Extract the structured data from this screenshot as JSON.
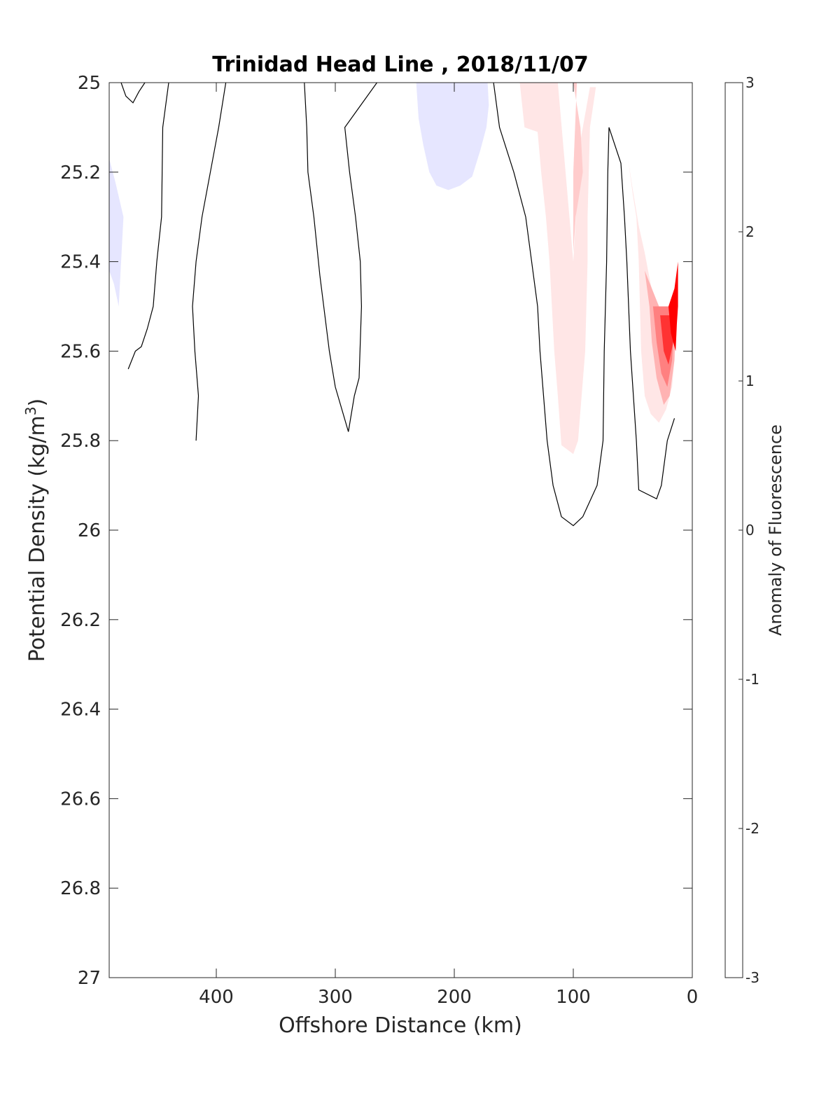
{
  "chart_data": {
    "type": "contour",
    "title": "Trinidad Head Line , 2018/11/07",
    "xlabel": "Offshore Distance (km)",
    "ylabel_main": "Potential Density (kg/m",
    "ylabel_sup": "3",
    "ylabel_close": ")",
    "colorbar_label": "Anomaly of Fluorescence",
    "xlim": [
      490,
      0
    ],
    "ylim": [
      25,
      27
    ],
    "x_reversed": true,
    "y_reversed": true,
    "x_ticks": [
      400,
      300,
      200,
      100,
      0
    ],
    "x_tick_labels": [
      "400",
      "300",
      "200",
      "100",
      "0"
    ],
    "y_ticks": [
      25,
      25.2,
      25.4,
      25.6,
      25.8,
      26,
      26.2,
      26.4,
      26.6,
      26.8,
      27
    ],
    "y_tick_labels": [
      "25",
      "25.2",
      "25.4",
      "25.6",
      "25.8",
      "26",
      "26.2",
      "26.4",
      "26.6",
      "26.8",
      "27"
    ],
    "colorbar": {
      "min": -3,
      "max": 3,
      "levels": 24,
      "ticks": [
        -3,
        -2,
        -1,
        0,
        1,
        2,
        3
      ],
      "tick_labels": [
        "-3",
        "-2",
        "-1",
        "0",
        "1",
        "2",
        "3"
      ],
      "min_color": "#0000ff",
      "zero_color": "#ffffff",
      "max_color": "#ff0000"
    },
    "filled_regions": [
      {
        "level": -0.25,
        "color": "#e6e6ff",
        "points": [
          [
            490,
            25.17
          ],
          [
            485,
            25.22
          ],
          [
            478,
            25.3
          ],
          [
            480,
            25.4
          ],
          [
            482,
            25.5
          ],
          [
            486,
            25.45
          ],
          [
            490,
            25.42
          ]
        ]
      },
      {
        "level": -0.25,
        "color": "#e6e6ff",
        "points": [
          [
            232,
            25
          ],
          [
            230,
            25.08
          ],
          [
            226,
            25.14
          ],
          [
            221,
            25.2
          ],
          [
            215,
            25.23
          ],
          [
            205,
            25.24
          ],
          [
            195,
            25.23
          ],
          [
            185,
            25.21
          ],
          [
            178,
            25.15
          ],
          [
            173,
            25.1
          ],
          [
            171,
            25.05
          ],
          [
            172,
            25
          ]
        ]
      },
      {
        "level": 0.25,
        "color": "#ffe6e6",
        "points": [
          [
            145,
            25
          ],
          [
            141,
            25.1
          ],
          [
            130,
            25.11
          ],
          [
            127,
            25.2
          ],
          [
            123,
            25.3
          ],
          [
            120,
            25.4
          ],
          [
            118,
            25.5
          ],
          [
            116,
            25.6
          ],
          [
            113,
            25.7
          ],
          [
            110,
            25.81
          ],
          [
            100,
            25.83
          ],
          [
            96,
            25.8
          ],
          [
            93,
            25.7
          ],
          [
            90,
            25.6
          ],
          [
            89,
            25.5
          ],
          [
            88,
            25.4
          ],
          [
            88,
            25.3
          ],
          [
            86,
            25.1
          ],
          [
            81,
            25.01
          ],
          [
            86,
            25.01
          ],
          [
            94,
            25.13
          ],
          [
            100,
            25.4
          ],
          [
            113,
            25.0
          ]
        ]
      },
      {
        "level": 0.5,
        "color": "#ffcccc",
        "points": [
          [
            100,
            25.0
          ],
          [
            94,
            25.1
          ],
          [
            92,
            25.2
          ],
          [
            98,
            25.3
          ],
          [
            100,
            25.38
          ],
          [
            100,
            25.2
          ],
          [
            97,
            25.0
          ]
        ]
      },
      {
        "level": 0.25,
        "color": "#ffe6e6",
        "points": [
          [
            54,
            25.17
          ],
          [
            50,
            25.25
          ],
          [
            47,
            25.3
          ],
          [
            45,
            25.4
          ],
          [
            44,
            25.5
          ],
          [
            43,
            25.6
          ],
          [
            40,
            25.7
          ],
          [
            35,
            25.74
          ],
          [
            28,
            25.76
          ],
          [
            22,
            25.73
          ],
          [
            17,
            25.68
          ],
          [
            15,
            25.62
          ],
          [
            13,
            25.55
          ],
          [
            13,
            25.5
          ],
          [
            30,
            25.5
          ],
          [
            35,
            25.45
          ],
          [
            40,
            25.38
          ],
          [
            45,
            25.32
          ],
          [
            50,
            25.24
          ]
        ]
      },
      {
        "level": 0.75,
        "color": "#ffb3b3",
        "points": [
          [
            40,
            25.42
          ],
          [
            36,
            25.5
          ],
          [
            34,
            25.58
          ],
          [
            30,
            25.66
          ],
          [
            24,
            25.72
          ],
          [
            19,
            25.7
          ],
          [
            15,
            25.62
          ],
          [
            14,
            25.5
          ],
          [
            20,
            25.5
          ],
          [
            28,
            25.5
          ]
        ]
      },
      {
        "level": 1.25,
        "color": "#ff8080",
        "points": [
          [
            33,
            25.5
          ],
          [
            30,
            25.58
          ],
          [
            26,
            25.65
          ],
          [
            21,
            25.68
          ],
          [
            17,
            25.62
          ],
          [
            15,
            25.52
          ],
          [
            20,
            25.5
          ]
        ]
      },
      {
        "level": 2.0,
        "color": "#ff3333",
        "points": [
          [
            27,
            25.52
          ],
          [
            24,
            25.6
          ],
          [
            20,
            25.63
          ],
          [
            16,
            25.58
          ],
          [
            15,
            25.52
          ]
        ]
      },
      {
        "level": 2.75,
        "color": "#ff0000",
        "points": [
          [
            12,
            25.4
          ],
          [
            15,
            25.46
          ],
          [
            20,
            25.5
          ],
          [
            18,
            25.56
          ],
          [
            14,
            25.6
          ],
          [
            13,
            25.54
          ],
          [
            12,
            25.5
          ]
        ]
      }
    ],
    "zero_contours": [
      [
        [
          480,
          25
        ],
        [
          476,
          25.03
        ],
        [
          470,
          25.045
        ],
        [
          465,
          25.02
        ],
        [
          460,
          25
        ]
      ],
      [
        [
          440,
          25
        ],
        [
          445,
          25.1
        ],
        [
          446,
          25.3
        ],
        [
          450,
          25.4
        ],
        [
          453,
          25.5
        ],
        [
          458,
          25.55
        ],
        [
          463,
          25.59
        ],
        [
          468,
          25.6
        ],
        [
          474,
          25.64
        ]
      ],
      [
        [
          392,
          25
        ],
        [
          398,
          25.1
        ],
        [
          405,
          25.2
        ],
        [
          412,
          25.3
        ],
        [
          417,
          25.4
        ],
        [
          420,
          25.5
        ],
        [
          418,
          25.6
        ],
        [
          415,
          25.7
        ],
        [
          417,
          25.8
        ]
      ],
      [
        [
          326,
          25
        ],
        [
          324,
          25.1
        ],
        [
          323,
          25.2
        ],
        [
          318,
          25.3
        ],
        [
          313,
          25.43
        ],
        [
          305,
          25.6
        ],
        [
          300,
          25.68
        ],
        [
          289,
          25.78
        ],
        [
          284,
          25.7
        ],
        [
          280,
          25.66
        ],
        [
          278,
          25.5
        ],
        [
          279,
          25.4
        ],
        [
          283,
          25.3
        ],
        [
          288,
          25.2
        ],
        [
          292,
          25.1
        ],
        [
          265,
          25.0
        ]
      ],
      [
        [
          167,
          25
        ],
        [
          162,
          25.1
        ],
        [
          150,
          25.2
        ],
        [
          140,
          25.3
        ],
        [
          135,
          25.4
        ],
        [
          130,
          25.5
        ],
        [
          128,
          25.6
        ],
        [
          125,
          25.7
        ],
        [
          122,
          25.8
        ],
        [
          117,
          25.9
        ],
        [
          110,
          25.97
        ],
        [
          100,
          25.99
        ],
        [
          92,
          25.97
        ],
        [
          80,
          25.9
        ],
        [
          75,
          25.8
        ],
        [
          74,
          25.6
        ],
        [
          72,
          25.4
        ],
        [
          71,
          25.2
        ],
        [
          70,
          25.1
        ],
        [
          60,
          25.18
        ],
        [
          57,
          25.3
        ],
        [
          55,
          25.4
        ],
        [
          52,
          25.6
        ],
        [
          47,
          25.8
        ],
        [
          45,
          25.91
        ],
        [
          30,
          25.93
        ],
        [
          26,
          25.9
        ],
        [
          21,
          25.8
        ],
        [
          15,
          25.75
        ]
      ]
    ]
  }
}
